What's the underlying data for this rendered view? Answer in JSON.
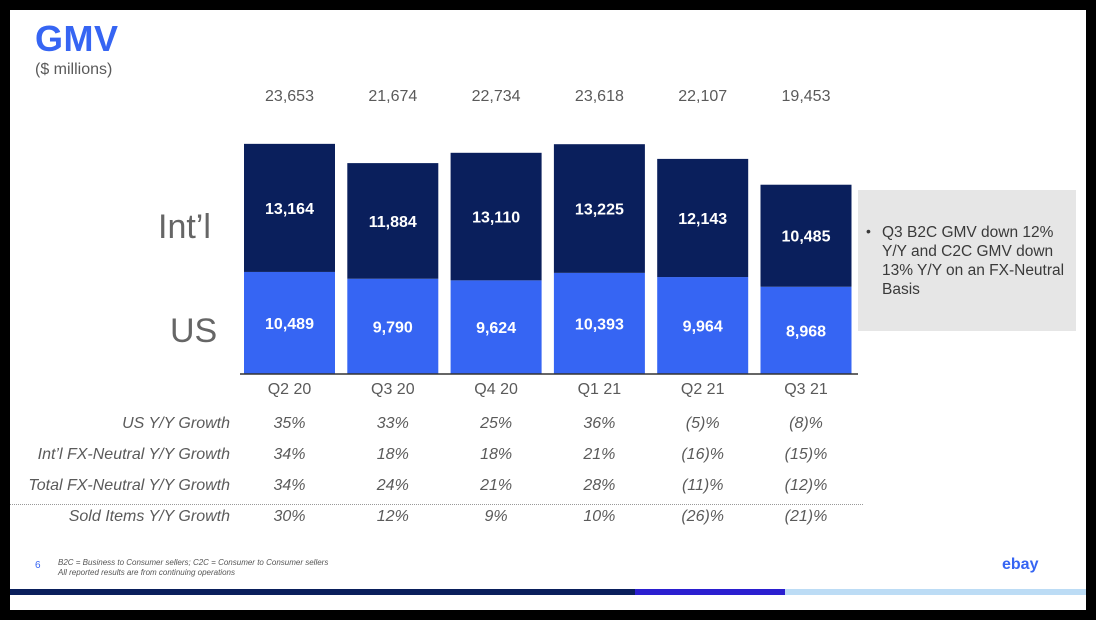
{
  "title": "GMV",
  "subtitle": "($ millions)",
  "side_labels": {
    "intl": "Int’l",
    "us": "US"
  },
  "chart_data": {
    "type": "bar",
    "stacked": true,
    "categories": [
      "Q2 20",
      "Q3 20",
      "Q4 20",
      "Q1 21",
      "Q2 21",
      "Q3 21"
    ],
    "series": [
      {
        "name": "US",
        "values": [
          10489,
          9790,
          9624,
          10393,
          9964,
          8968
        ],
        "labels": [
          "10,489",
          "9,790",
          "9,624",
          "10,393",
          "9,964",
          "8,968"
        ],
        "color": "#3665f3"
      },
      {
        "name": "Int’l",
        "values": [
          13164,
          11884,
          13110,
          13225,
          12143,
          10485
        ],
        "labels": [
          "13,164",
          "11,884",
          "13,110",
          "13,225",
          "12,143",
          "10,485"
        ],
        "color": "#0a1f5c"
      }
    ],
    "totals": [
      "23,653",
      "21,674",
      "22,734",
      "23,618",
      "22,107",
      "19,453"
    ],
    "ylim": [
      0,
      25000
    ]
  },
  "note": "Q3 B2C GMV down 12% Y/Y and C2C GMV down 13% Y/Y on an FX-Neutral Basis",
  "growth_rows": [
    {
      "label": "US Y/Y Growth",
      "values": [
        "35%",
        "33%",
        "25%",
        "36%",
        "(5)%",
        "(8)%"
      ]
    },
    {
      "label": "Int’l FX-Neutral Y/Y Growth",
      "values": [
        "34%",
        "18%",
        "18%",
        "21%",
        "(16)%",
        "(15)%"
      ]
    },
    {
      "label": "Total FX-Neutral Y/Y Growth",
      "values": [
        "34%",
        "24%",
        "21%",
        "28%",
        "(11)%",
        "(12)%"
      ]
    },
    {
      "label": "Sold Items Y/Y Growth",
      "values": [
        "30%",
        "12%",
        "9%",
        "10%",
        "(26)%",
        "(21)%"
      ]
    }
  ],
  "footer": {
    "page_number": "6",
    "line1": "B2C = Business to Consumer sellers; C2C = Consumer to Consumer sellers",
    "line2": "All reported results are from continuing operations",
    "logo": "ebay"
  },
  "colors": {
    "us": "#3665f3",
    "intl": "#0a1f5c",
    "accent": "#3665f3"
  }
}
